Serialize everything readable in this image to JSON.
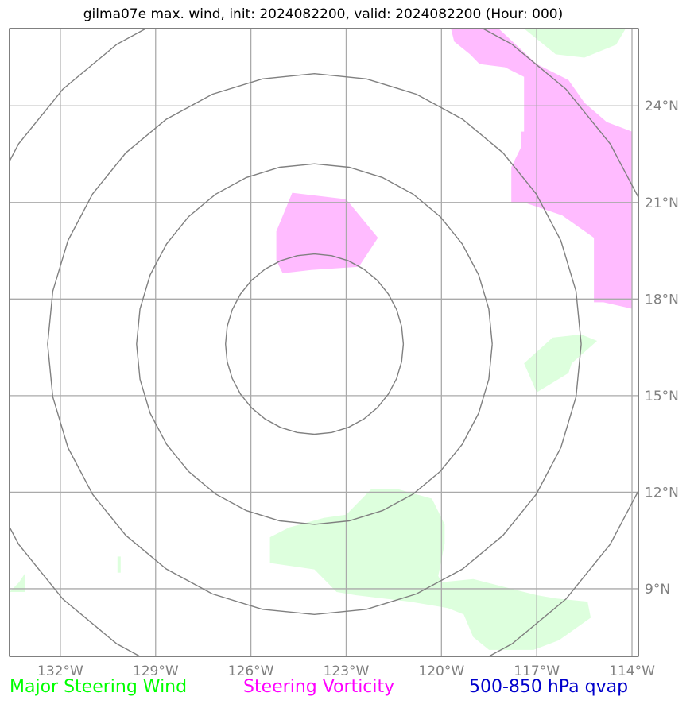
{
  "title": "gilma07e max. wind, init: 2024082200, valid: 2024082200 (Hour: 000)",
  "legend": [
    {
      "label": "Major Steering Wind",
      "color": "#00ff00"
    },
    {
      "label": "Steering Vorticity",
      "color": "#ff00ff"
    },
    {
      "label": "500-850 hPa qvap",
      "color": "#0000cc"
    }
  ],
  "colors": {
    "vorticity_fill": "#ffbbff",
    "wind_fill": "#ddffdd",
    "grid": "#aaaaaa",
    "rings": "#808080",
    "frame": "#000000",
    "tick_text": "#808080"
  },
  "chart_data": {
    "type": "map",
    "projection": "lat-lon",
    "lon_range": [
      -133.6,
      -113.8
    ],
    "lat_range": [
      6.9,
      26.4
    ],
    "x_ticks": [
      {
        "value": -132,
        "label": "132°W"
      },
      {
        "value": -129,
        "label": "129°W"
      },
      {
        "value": -126,
        "label": "126°W"
      },
      {
        "value": -123,
        "label": "123°W"
      },
      {
        "value": -120,
        "label": "120°W"
      },
      {
        "value": -117,
        "label": "117°W"
      },
      {
        "value": -114,
        "label": "114°W"
      }
    ],
    "y_ticks": [
      {
        "value": 24,
        "label": "24°N"
      },
      {
        "value": 21,
        "label": "21°N"
      },
      {
        "value": 18,
        "label": "18°N"
      },
      {
        "value": 15,
        "label": "15°N"
      },
      {
        "value": 12,
        "label": "12°N"
      },
      {
        "value": 9,
        "label": "9°N"
      }
    ],
    "grid": true,
    "storm_center": {
      "lon": -124.0,
      "lat": 16.6
    },
    "range_rings_deg": [
      2.8,
      5.6,
      8.4,
      11.2
    ],
    "vorticity_regions": [
      [
        [
          -125.2,
          20.1
        ],
        [
          -124.7,
          21.3
        ],
        [
          -123.0,
          21.1
        ],
        [
          -122.0,
          19.9
        ],
        [
          -122.6,
          19.0
        ],
        [
          -124.1,
          18.9
        ],
        [
          -125.0,
          18.8
        ],
        [
          -125.2,
          19.2
        ]
      ],
      [
        [
          -119.7,
          26.4
        ],
        [
          -118.2,
          26.4
        ],
        [
          -117.0,
          25.3
        ],
        [
          -116.0,
          24.8
        ],
        [
          -115.5,
          24.1
        ],
        [
          -114.8,
          23.5
        ],
        [
          -114.0,
          23.2
        ],
        [
          -114.0,
          17.7
        ],
        [
          -114.9,
          17.9
        ],
        [
          -115.2,
          17.9
        ],
        [
          -115.2,
          19.9
        ],
        [
          -116.2,
          20.6
        ],
        [
          -117.4,
          21.0
        ],
        [
          -117.8,
          21.0
        ],
        [
          -117.8,
          22.1
        ],
        [
          -117.5,
          22.7
        ],
        [
          -117.5,
          23.2
        ],
        [
          -117.4,
          23.2
        ],
        [
          -117.4,
          24.2
        ],
        [
          -117.4,
          24.9
        ],
        [
          -118.0,
          25.2
        ],
        [
          -118.8,
          25.3
        ],
        [
          -119.1,
          25.6
        ],
        [
          -119.6,
          26.0
        ]
      ]
    ],
    "wind_regions": [
      [
        [
          -117.4,
          26.4
        ],
        [
          -114.2,
          26.4
        ],
        [
          -114.5,
          25.9
        ],
        [
          -115.5,
          25.5
        ],
        [
          -116.4,
          25.6
        ]
      ],
      [
        [
          -117.4,
          16.0
        ],
        [
          -116.5,
          16.8
        ],
        [
          -115.6,
          16.9
        ],
        [
          -115.1,
          16.7
        ],
        [
          -115.9,
          16.0
        ],
        [
          -116.0,
          15.7
        ],
        [
          -117.0,
          15.1
        ]
      ],
      [
        [
          -125.4,
          10.6
        ],
        [
          -124.8,
          10.9
        ],
        [
          -123.7,
          11.2
        ],
        [
          -123.0,
          11.3
        ],
        [
          -122.2,
          12.1
        ],
        [
          -121.4,
          12.1
        ],
        [
          -120.3,
          11.8
        ],
        [
          -119.9,
          11.0
        ],
        [
          -119.9,
          10.4
        ],
        [
          -120.1,
          9.4
        ],
        [
          -120.0,
          9.2
        ],
        [
          -119.0,
          9.3
        ],
        [
          -117.0,
          8.8
        ],
        [
          -116.4,
          8.7
        ],
        [
          -115.4,
          8.6
        ],
        [
          -115.3,
          8.1
        ],
        [
          -116.3,
          7.4
        ],
        [
          -117.1,
          7.1
        ],
        [
          -118.5,
          7.1
        ],
        [
          -119.0,
          7.5
        ],
        [
          -119.3,
          8.2
        ],
        [
          -119.8,
          8.4
        ],
        [
          -121.0,
          8.6
        ],
        [
          -122.7,
          8.8
        ],
        [
          -123.3,
          8.9
        ],
        [
          -124.0,
          9.6
        ],
        [
          -125.4,
          9.8
        ]
      ],
      [
        [
          -133.6,
          8.9
        ],
        [
          -133.3,
          9.2
        ],
        [
          -133.1,
          9.5
        ],
        [
          -133.1,
          8.9
        ]
      ],
      [
        [
          -130.2,
          10.0
        ],
        [
          -130.1,
          10.0
        ],
        [
          -130.1,
          9.5
        ],
        [
          -130.2,
          9.5
        ]
      ]
    ]
  }
}
